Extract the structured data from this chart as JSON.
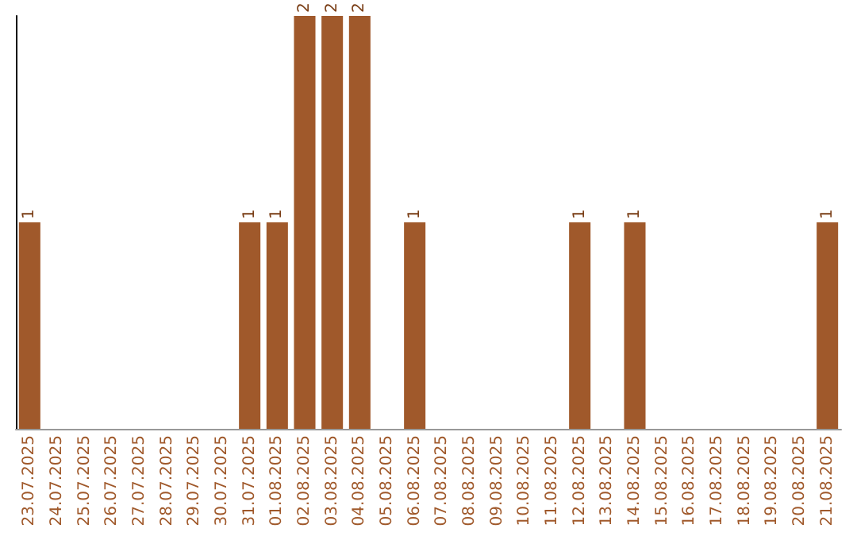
{
  "chart_data": {
    "type": "bar",
    "categories": [
      "23.07.2025",
      "24.07.2025",
      "25.07.2025",
      "26.07.2025",
      "27.07.2025",
      "28.07.2025",
      "29.07.2025",
      "30.07.2025",
      "31.07.2025",
      "01.08.2025",
      "02.08.2025",
      "03.08.2025",
      "04.08.2025",
      "05.08.2025",
      "06.08.2025",
      "07.08.2025",
      "08.08.2025",
      "09.08.2025",
      "10.08.2025",
      "11.08.2025",
      "12.08.2025",
      "13.08.2025",
      "14.08.2025",
      "15.08.2025",
      "16.08.2025",
      "17.08.2025",
      "18.08.2025",
      "19.08.2025",
      "20.08.2025",
      "21.08.2025"
    ],
    "values": [
      1,
      0,
      0,
      0,
      0,
      0,
      0,
      0,
      1,
      1,
      2,
      2,
      2,
      0,
      1,
      0,
      0,
      0,
      0,
      0,
      1,
      0,
      1,
      0,
      0,
      0,
      0,
      0,
      0,
      1
    ],
    "value_labels": [
      "1",
      null,
      null,
      null,
      null,
      null,
      null,
      null,
      "1",
      "1",
      "2",
      "2",
      "2",
      null,
      "1",
      null,
      null,
      null,
      null,
      null,
      "1",
      null,
      "1",
      null,
      null,
      null,
      null,
      null,
      null,
      "1"
    ],
    "color": "#a0592b",
    "tick_labels": "x"
  }
}
